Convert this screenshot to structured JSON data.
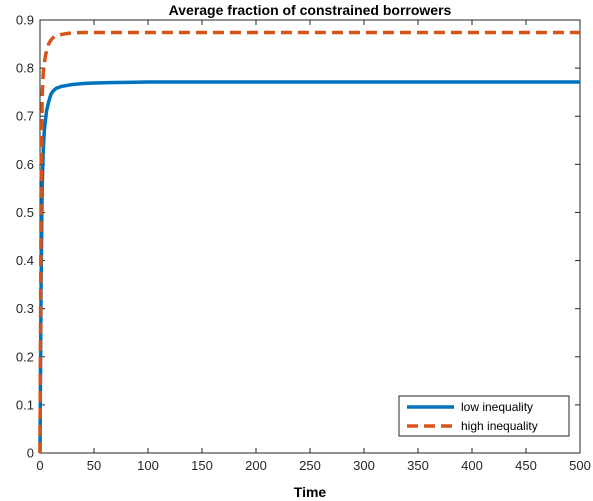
{
  "chart_data": {
    "type": "line",
    "title": "Average fraction of constrained borrowers",
    "xlabel": "Time",
    "ylabel": "",
    "xlim": [
      0,
      500
    ],
    "ylim": [
      0,
      0.9
    ],
    "xticks": [
      0,
      50,
      100,
      150,
      200,
      250,
      300,
      350,
      400,
      450,
      500
    ],
    "yticks": [
      0,
      0.1,
      0.2,
      0.3,
      0.4,
      0.5,
      0.6,
      0.7,
      0.8,
      0.9
    ],
    "grid": false,
    "legend_position": "bottom-right",
    "series": [
      {
        "name": "low inequality",
        "color": "#0072BD",
        "style": "solid",
        "x": [
          0,
          1,
          2,
          3,
          4,
          5,
          6,
          8,
          10,
          12,
          15,
          20,
          25,
          30,
          40,
          50,
          70,
          100,
          150,
          200,
          300,
          400,
          500
        ],
        "y": [
          0,
          0.35,
          0.55,
          0.63,
          0.67,
          0.69,
          0.71,
          0.73,
          0.745,
          0.752,
          0.758,
          0.762,
          0.764,
          0.766,
          0.768,
          0.769,
          0.77,
          0.771,
          0.771,
          0.771,
          0.771,
          0.771,
          0.771
        ]
      },
      {
        "name": "high inequality",
        "color": "#D95319",
        "style": "dashed",
        "x": [
          0,
          1,
          2,
          3,
          4,
          5,
          6,
          8,
          10,
          12,
          15,
          20,
          25,
          30,
          40,
          50,
          70,
          100,
          150,
          200,
          300,
          400,
          500
        ],
        "y": [
          0,
          0.55,
          0.74,
          0.79,
          0.81,
          0.825,
          0.835,
          0.85,
          0.858,
          0.863,
          0.867,
          0.87,
          0.872,
          0.873,
          0.874,
          0.874,
          0.874,
          0.874,
          0.874,
          0.874,
          0.874,
          0.874,
          0.874
        ]
      }
    ]
  }
}
